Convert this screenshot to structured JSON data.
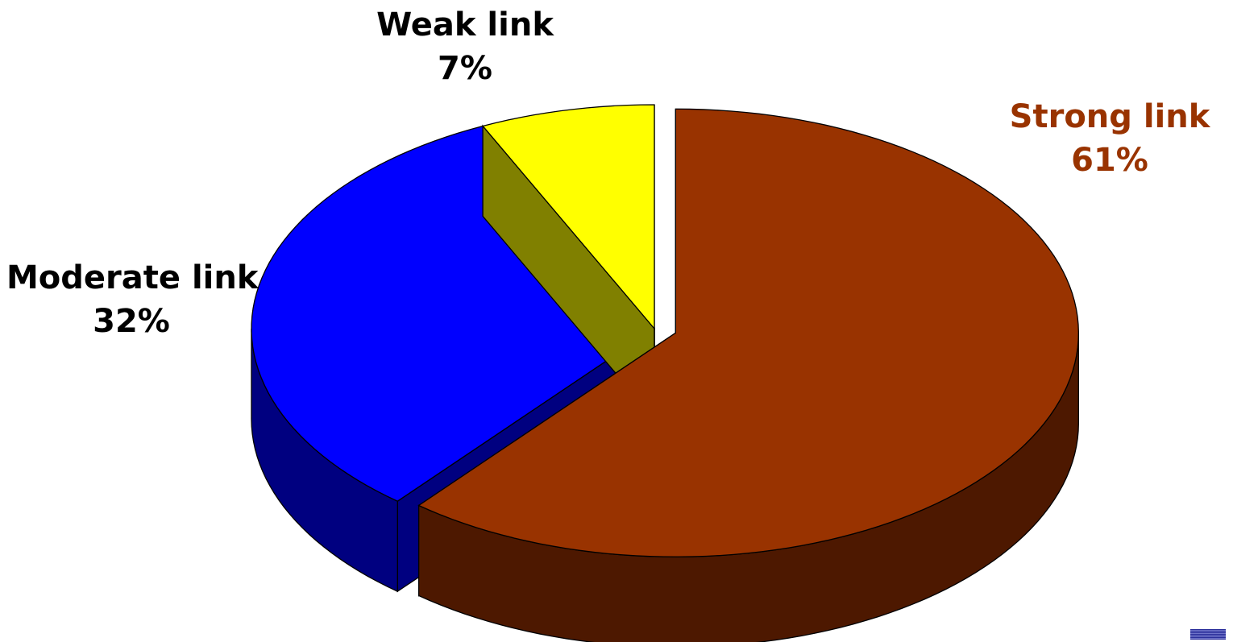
{
  "chart_data": {
    "type": "pie",
    "style": "3d-exploded",
    "slices": [
      {
        "label": "Strong link",
        "percent_label": "61%",
        "value": 61,
        "color": "#993300",
        "side_color": "#4d1800",
        "text_color": "#993300"
      },
      {
        "label": "Moderate link",
        "percent_label": "32%",
        "value": 32,
        "color": "#0000ff",
        "side_color": "#000080",
        "text_color": "#000000"
      },
      {
        "label": "Weak link",
        "percent_label": "7%",
        "value": 7,
        "color": "#ffff00",
        "side_color": "#808000",
        "text_color": "#000000"
      }
    ],
    "exploded_slice": "Strong link",
    "legend": "none"
  }
}
